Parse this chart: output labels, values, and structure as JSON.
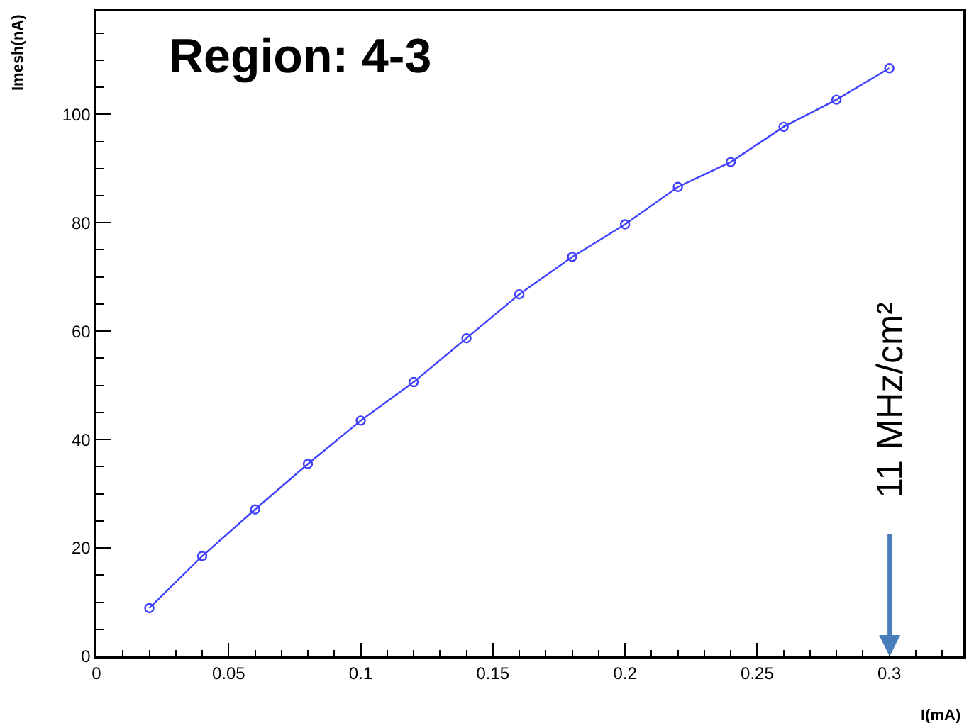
{
  "chart_data": {
    "type": "line",
    "title": "Region: 4-3",
    "xlabel": "I(mA)",
    "ylabel": "Imesh(nA)",
    "x": [
      0.02,
      0.04,
      0.06,
      0.08,
      0.1,
      0.12,
      0.14,
      0.16,
      0.18,
      0.2,
      0.22,
      0.24,
      0.26,
      0.28,
      0.3
    ],
    "series": [
      {
        "color": "#4040ff",
        "values": [
          8.9,
          18.5,
          27.1,
          35.5,
          43.5,
          50.6,
          58.7,
          66.8,
          73.7,
          79.7,
          86.6,
          91.2,
          97.7,
          102.7,
          108.5
        ]
      }
    ],
    "marker": "circle",
    "line_style": "solid",
    "xlim": [
      0,
      0.328
    ],
    "xticks": [
      0,
      0.05,
      0.1,
      0.15,
      0.2,
      0.25,
      0.3
    ],
    "ylim": [
      0,
      119
    ],
    "yticks": [
      0,
      20,
      40,
      60,
      80,
      100
    ],
    "annotations": [
      "11 MHz/cm²"
    ]
  }
}
